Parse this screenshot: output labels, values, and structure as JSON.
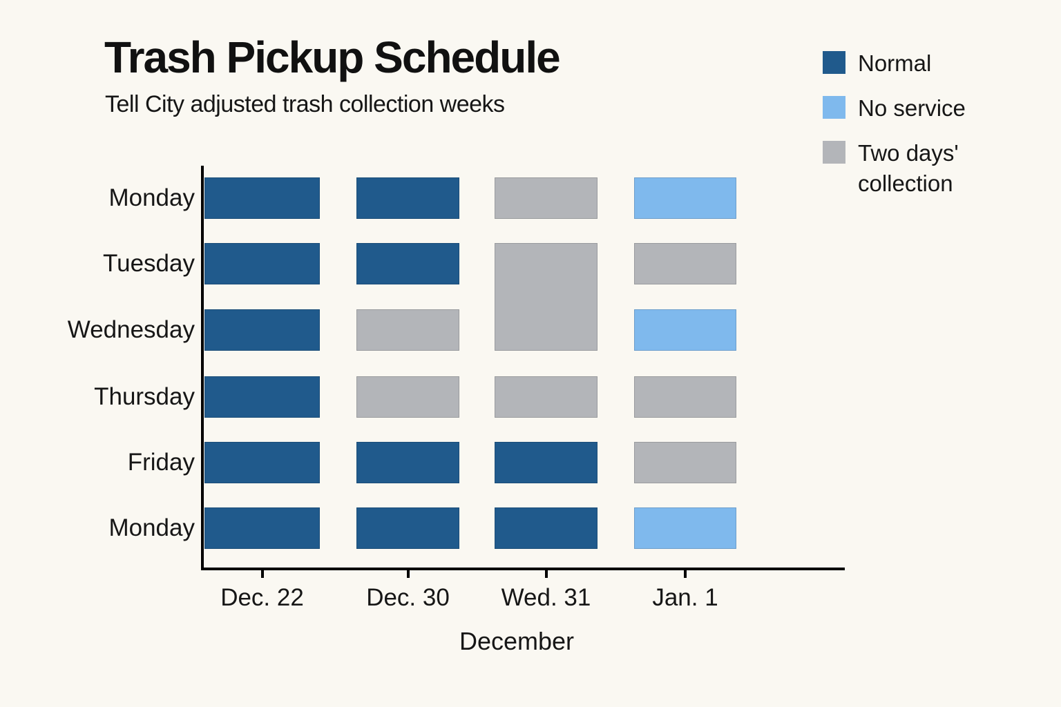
{
  "page": {
    "background": "#faf8f2"
  },
  "header": {
    "title": "Trash Pickup Schedule",
    "subtitle": "Tell City adjusted trash collection weeks"
  },
  "legend": {
    "items": [
      {
        "label": "Normal",
        "status": "normal"
      },
      {
        "label": "No service",
        "status": "no_service"
      },
      {
        "label": "Two days' collection",
        "status": "two_days"
      }
    ]
  },
  "colors": {
    "normal": "#205a8c",
    "no_service": "#7fb9ed",
    "two_days": "#b3b5b9",
    "axis": "#000000",
    "background": "#faf8f2"
  },
  "chart_data": {
    "type": "heatmap",
    "title": "Trash Pickup Schedule",
    "subtitle": "Tell City adjusted trash collection weeks",
    "xlabel": "December",
    "x_categories": [
      "Dec. 22",
      "Dec. 30",
      "Wed. 31",
      "Jan. 1"
    ],
    "y_categories": [
      "Monday",
      "Tuesday",
      "Wednesday",
      "Thursday",
      "Friday",
      "Monday"
    ],
    "legend_position": "top-right",
    "grid": false,
    "status_labels": {
      "normal": "Normal",
      "no_service": "No service",
      "two_days": "Two days' collection"
    },
    "values": [
      [
        "normal",
        "normal",
        "two_days",
        "no_service"
      ],
      [
        "normal",
        "normal",
        "two_days",
        "two_days"
      ],
      [
        "normal",
        "two_days",
        "two_days",
        "no_service"
      ],
      [
        "normal",
        "two_days",
        "two_days",
        "two_days"
      ],
      [
        "normal",
        "normal",
        "normal",
        "two_days"
      ],
      [
        "normal",
        "normal",
        "normal",
        "no_service"
      ]
    ],
    "merged_cells": [
      {
        "row_start": 1,
        "row_end": 2,
        "col": 2,
        "status": "two_days"
      }
    ],
    "blocks": [
      {
        "row": 0,
        "col": 0,
        "status": "normal"
      },
      {
        "row": 0,
        "col": 1,
        "status": "normal"
      },
      {
        "row": 0,
        "col": 2,
        "status": "two_days"
      },
      {
        "row": 0,
        "col": 3,
        "status": "no_service"
      },
      {
        "row": 1,
        "col": 0,
        "status": "normal"
      },
      {
        "row": 1,
        "col": 1,
        "status": "normal"
      },
      {
        "row": 1,
        "col": 2,
        "status": "two_days",
        "rowspan": 2
      },
      {
        "row": 1,
        "col": 3,
        "status": "two_days"
      },
      {
        "row": 2,
        "col": 0,
        "status": "normal"
      },
      {
        "row": 2,
        "col": 1,
        "status": "two_days"
      },
      {
        "row": 2,
        "col": 3,
        "status": "no_service"
      },
      {
        "row": 3,
        "col": 0,
        "status": "normal"
      },
      {
        "row": 3,
        "col": 1,
        "status": "two_days"
      },
      {
        "row": 3,
        "col": 2,
        "status": "two_days"
      },
      {
        "row": 3,
        "col": 3,
        "status": "two_days"
      },
      {
        "row": 4,
        "col": 0,
        "status": "normal"
      },
      {
        "row": 4,
        "col": 1,
        "status": "normal"
      },
      {
        "row": 4,
        "col": 2,
        "status": "normal"
      },
      {
        "row": 4,
        "col": 3,
        "status": "two_days"
      },
      {
        "row": 5,
        "col": 0,
        "status": "normal"
      },
      {
        "row": 5,
        "col": 1,
        "status": "normal"
      },
      {
        "row": 5,
        "col": 2,
        "status": "normal"
      },
      {
        "row": 5,
        "col": 3,
        "status": "no_service"
      }
    ]
  }
}
